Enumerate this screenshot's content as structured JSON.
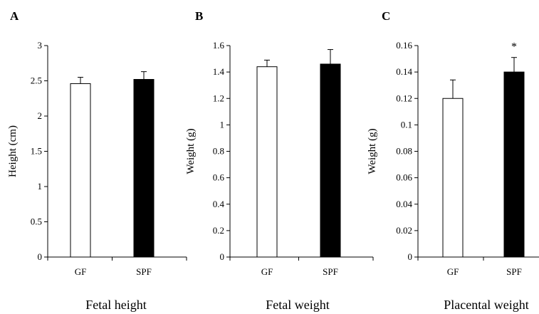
{
  "chart_data": [
    {
      "type": "bar",
      "panel": "A",
      "title": "Fetal height",
      "ylabel": "Height (cm)",
      "categories": [
        "GF",
        "SPF"
      ],
      "values": [
        2.46,
        2.52
      ],
      "errors": [
        0.09,
        0.11
      ],
      "ylim": [
        0,
        3
      ],
      "yticks": [
        "0",
        "0.5",
        "1",
        "1.5",
        "2",
        "2.5",
        "3"
      ],
      "bar_colors": [
        "#ffffff",
        "#000000"
      ],
      "annotations": []
    },
    {
      "type": "bar",
      "panel": "B",
      "title": "Fetal weight",
      "ylabel": "Weight (g)",
      "categories": [
        "GF",
        "SPF"
      ],
      "values": [
        1.44,
        1.46
      ],
      "errors": [
        0.05,
        0.11
      ],
      "ylim": [
        0,
        1.6
      ],
      "yticks": [
        "0",
        "0.2",
        "0.4",
        "0.6",
        "0.8",
        "1",
        "1.2",
        "1.4",
        "1.6"
      ],
      "bar_colors": [
        "#ffffff",
        "#000000"
      ],
      "annotations": []
    },
    {
      "type": "bar",
      "panel": "C",
      "title": "Placental weight",
      "ylabel": "Weight (g)",
      "categories": [
        "GF",
        "SPF"
      ],
      "values": [
        0.12,
        0.14
      ],
      "errors": [
        0.014,
        0.011
      ],
      "ylim": [
        0,
        0.16
      ],
      "yticks": [
        "0",
        "0.02",
        "0.04",
        "0.06",
        "0.08",
        "0.1",
        "0.12",
        "0.14",
        "0.16"
      ],
      "bar_colors": [
        "#ffffff",
        "#000000"
      ],
      "annotations": [
        {
          "category": "SPF",
          "text": "*"
        }
      ]
    }
  ]
}
